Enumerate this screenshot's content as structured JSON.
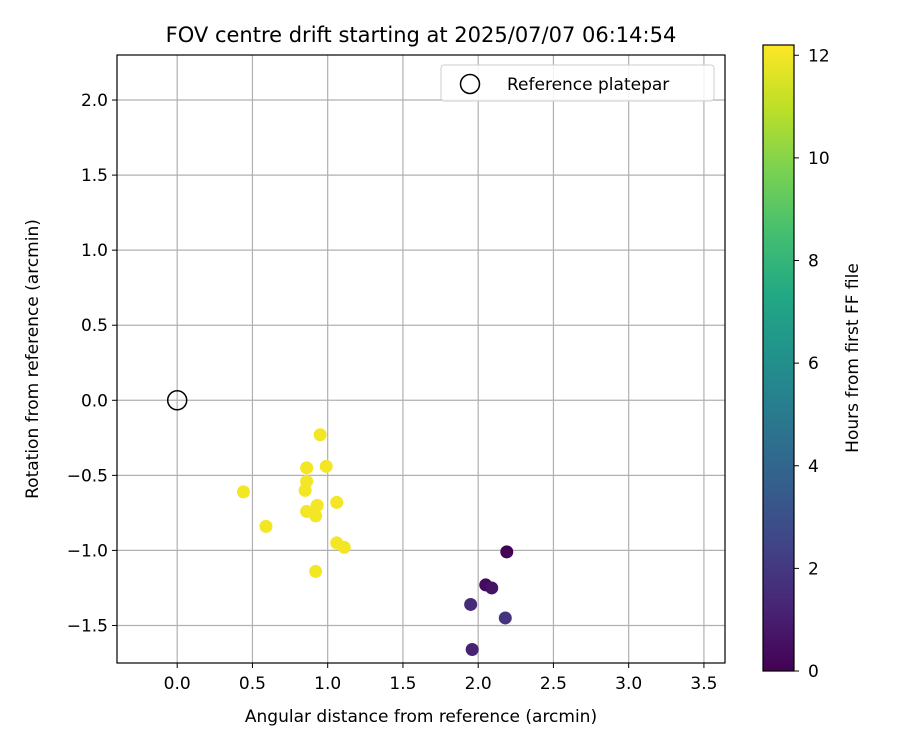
{
  "chart_data": {
    "type": "scatter",
    "title": "FOV centre drift starting at 2025/07/07 06:14:54",
    "xlabel": "Angular distance from reference (arcmin)",
    "ylabel": "Rotation from reference (arcmin)",
    "xlim": [
      -0.4,
      3.64
    ],
    "ylim": [
      -1.75,
      2.3
    ],
    "x_ticks": [
      0.0,
      0.5,
      1.0,
      1.5,
      2.0,
      2.5,
      3.0,
      3.5
    ],
    "y_ticks": [
      -1.5,
      -1.0,
      -0.5,
      0.0,
      0.5,
      1.0,
      1.5,
      2.0
    ],
    "x_tick_labels": [
      "0.0",
      "0.5",
      "1.0",
      "1.5",
      "2.0",
      "2.5",
      "3.0",
      "3.5"
    ],
    "y_tick_labels": [
      "−1.5",
      "−1.0",
      "−0.5",
      "0.0",
      "0.5",
      "1.0",
      "1.5",
      "2.0"
    ],
    "grid": true,
    "legend": {
      "position": "top-right",
      "entries": [
        {
          "label": "Reference platepar",
          "marker": "open-circle"
        }
      ]
    },
    "reference_point": {
      "x": 0.0,
      "y": 0.0
    },
    "colorbar": {
      "label": "Hours from first FF file",
      "range": [
        0,
        12.2
      ],
      "ticks": [
        0,
        2,
        4,
        6,
        8,
        10,
        12
      ],
      "colormap": "viridis"
    },
    "points": [
      {
        "x": 2.19,
        "y": -1.01,
        "hours": 0.05
      },
      {
        "x": 2.05,
        "y": -1.23,
        "hours": 0.3
      },
      {
        "x": 2.09,
        "y": -1.25,
        "hours": 0.6
      },
      {
        "x": 1.95,
        "y": -1.36,
        "hours": 1.5
      },
      {
        "x": 2.18,
        "y": -1.45,
        "hours": 1.8
      },
      {
        "x": 1.96,
        "y": -1.66,
        "hours": 1.2
      },
      {
        "x": 0.95,
        "y": -0.23,
        "hours": 12.0
      },
      {
        "x": 0.86,
        "y": -0.45,
        "hours": 12.0
      },
      {
        "x": 0.99,
        "y": -0.44,
        "hours": 12.0
      },
      {
        "x": 0.86,
        "y": -0.54,
        "hours": 12.0
      },
      {
        "x": 0.85,
        "y": -0.6,
        "hours": 12.0
      },
      {
        "x": 0.44,
        "y": -0.61,
        "hours": 12.0
      },
      {
        "x": 1.06,
        "y": -0.68,
        "hours": 12.0
      },
      {
        "x": 0.93,
        "y": -0.7,
        "hours": 12.0
      },
      {
        "x": 0.86,
        "y": -0.74,
        "hours": 12.0
      },
      {
        "x": 0.92,
        "y": -0.77,
        "hours": 12.0
      },
      {
        "x": 0.59,
        "y": -0.84,
        "hours": 12.0
      },
      {
        "x": 1.06,
        "y": -0.95,
        "hours": 12.0
      },
      {
        "x": 1.11,
        "y": -0.98,
        "hours": 12.0
      },
      {
        "x": 0.92,
        "y": -1.14,
        "hours": 12.0
      }
    ]
  }
}
